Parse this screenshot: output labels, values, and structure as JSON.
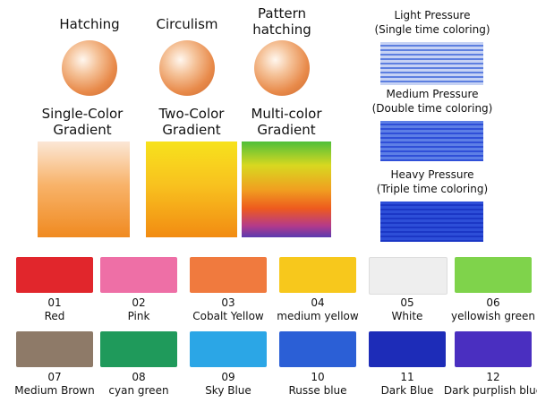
{
  "techniques": [
    "Hatching",
    "Circulism",
    "Pattern hatching"
  ],
  "gradients": [
    "Single-Color Gradient",
    "Two-Color Gradient",
    "Multi-color Gradient"
  ],
  "pressures": [
    {
      "label": "Light Pressure",
      "note": "(Single time coloring)"
    },
    {
      "label": "Medium Pressure",
      "note": "(Double time coloring)"
    },
    {
      "label": "Heavy Pressure",
      "note": "(Triple time coloring)"
    }
  ],
  "swatches": [
    {
      "number": "01",
      "name": "Red",
      "color": "#e1262c"
    },
    {
      "number": "02",
      "name": "Pink",
      "color": "#ee6fa6"
    },
    {
      "number": "03",
      "name": "Cobalt Yellow",
      "color": "#f07a3e"
    },
    {
      "number": "04",
      "name": "medium yellow",
      "color": "#f7c81c"
    },
    {
      "number": "05",
      "name": "White",
      "color": "#eeeeee"
    },
    {
      "number": "06",
      "name": "yellowish green",
      "color": "#7fd34b"
    },
    {
      "number": "07",
      "name": "Medium Brown",
      "color": "#8e7a68"
    },
    {
      "number": "08",
      "name": "cyan green",
      "color": "#1f9a5b"
    },
    {
      "number": "09",
      "name": "Sky Blue",
      "color": "#2ba6e6"
    },
    {
      "number": "10",
      "name": "Russe blue",
      "color": "#2b5fd6"
    },
    {
      "number": "11",
      "name": "Dark Blue",
      "color": "#1d2cb8"
    },
    {
      "number": "12",
      "name": "Dark purplish blue",
      "color": "#4a2fc0"
    }
  ]
}
